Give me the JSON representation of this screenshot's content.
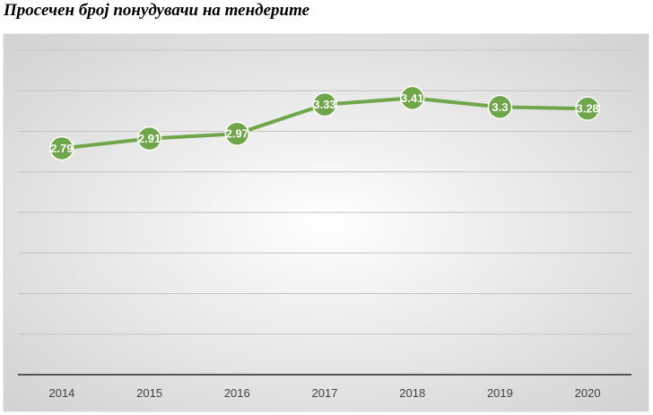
{
  "title": "Просечен број понудувачи на тендерите",
  "chart_data": {
    "type": "line",
    "title": "Просечен број понудувачи на тендерите",
    "categories": [
      "2014",
      "2015",
      "2016",
      "2017",
      "2018",
      "2019",
      "2020"
    ],
    "series": [
      {
        "values": [
          2.79,
          2.91,
          2.97,
          3.33,
          3.41,
          3.3,
          3.28
        ],
        "data_labels": [
          "2.79",
          "2.91",
          "2.97",
          "3.33",
          "3.41",
          "3.3",
          "3.28"
        ]
      }
    ],
    "xlabel": "",
    "ylabel": "",
    "ylim": [
      0,
      4
    ],
    "grid": true,
    "legend": "none",
    "colors": {
      "line": "#70a64a",
      "marker": "#70a64a",
      "label_text": "#ffffff",
      "gridline": "#c4c4c4",
      "axis": "#555555",
      "background_center": "#ffffff",
      "background_edge": "#d2d2d2"
    }
  }
}
